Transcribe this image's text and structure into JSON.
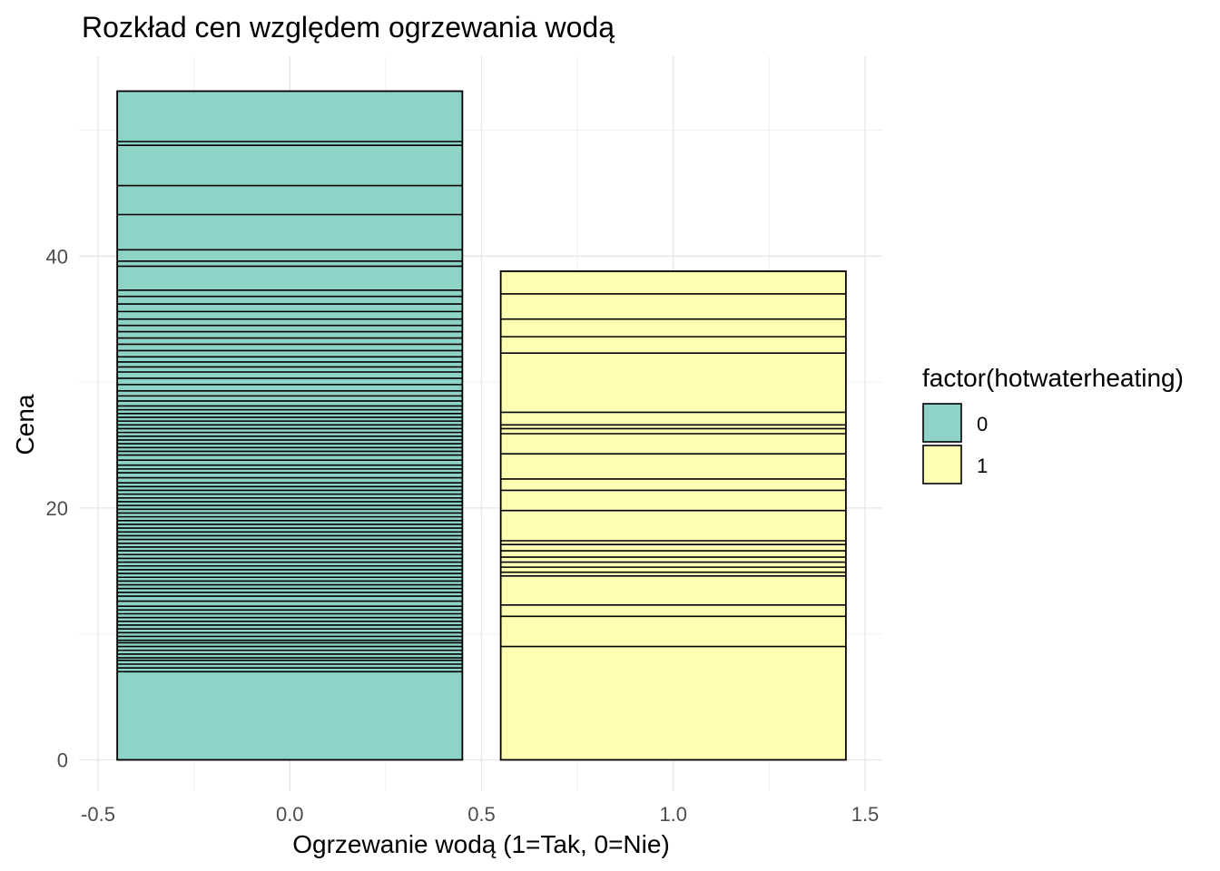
{
  "chart_data": {
    "type": "bar",
    "title": "Rozkład cen względem ogrzewania wodą",
    "xlabel": "Ogrzewanie wodą (1=Tak, 0=Nie)",
    "ylabel": "Cena",
    "xlim": [
      -0.5,
      1.5
    ],
    "ylim": [
      0,
      53
    ],
    "x_ticks": [
      -0.5,
      0.0,
      0.5,
      1.0,
      1.5
    ],
    "x_tick_labels": [
      "-0.5",
      "0.0",
      "0.5",
      "1.0",
      "1.5"
    ],
    "y_ticks": [
      0,
      20,
      40
    ],
    "y_tick_labels": [
      "0",
      "20",
      "40"
    ],
    "grid": true,
    "legend": {
      "title": "factor(hotwaterheating)",
      "placement": "right",
      "entries": [
        {
          "label": "0",
          "color": "#8DD3C7"
        },
        {
          "label": "1",
          "color": "#FFFFB3"
        }
      ]
    },
    "bar_width": 0.9,
    "series": [
      {
        "category": "0",
        "x": 0,
        "color": "#8DD3C7",
        "total": 53.1,
        "boundaries": [
          7.0,
          7.3,
          7.6,
          7.9,
          8.1,
          8.4,
          8.7,
          9.0,
          9.3,
          9.5,
          9.8,
          10.1,
          10.4,
          10.7,
          11.0,
          11.3,
          11.6,
          11.9,
          12.2,
          12.6,
          13.0,
          13.3,
          13.6,
          13.9,
          14.2,
          14.5,
          14.8,
          15.1,
          15.4,
          15.7,
          16.0,
          16.3,
          16.6,
          16.9,
          17.2,
          17.5,
          17.8,
          18.1,
          18.4,
          18.7,
          19.0,
          19.3,
          19.6,
          19.9,
          20.2,
          20.5,
          20.8,
          21.1,
          21.4,
          21.7,
          22.0,
          22.4,
          22.8,
          23.1,
          23.4,
          23.8,
          24.2,
          24.5,
          24.8,
          25.1,
          25.4,
          25.7,
          26.0,
          26.3,
          26.6,
          26.9,
          27.2,
          27.5,
          27.8,
          28.1,
          28.5,
          28.9,
          29.3,
          29.8,
          30.3,
          30.8,
          31.2,
          31.6,
          32.0,
          32.5,
          33.0,
          33.5,
          34.0,
          34.5,
          35.0,
          35.6,
          36.2,
          36.8,
          37.3,
          39.2,
          39.6,
          40.5,
          43.3,
          45.6,
          48.8,
          49.1
        ]
      },
      {
        "category": "1",
        "x": 1,
        "color": "#FFFFB3",
        "total": 38.8,
        "boundaries": [
          9.0,
          11.4,
          12.3,
          14.6,
          14.9,
          15.3,
          15.7,
          16.1,
          16.6,
          17.1,
          17.4,
          19.8,
          21.4,
          22.3,
          24.3,
          25.9,
          26.3,
          26.6,
          27.6,
          32.3,
          33.6,
          35.0,
          37.0
        ]
      }
    ]
  }
}
